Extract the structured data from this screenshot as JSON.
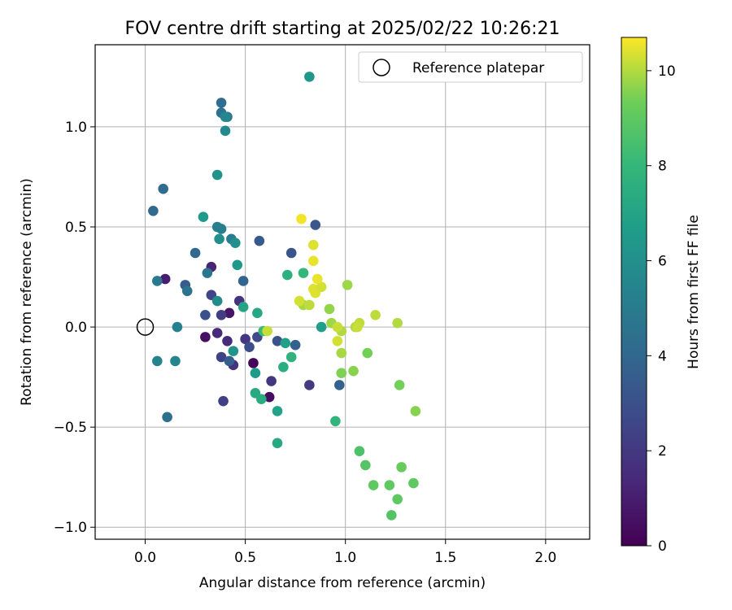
{
  "chart_data": {
    "type": "scatter",
    "title": "FOV centre drift starting at 2025/02/22 10:26:21",
    "xlabel": "Angular distance from reference (arcmin)",
    "ylabel": "Rotation from reference (arcmin)",
    "xlim": [
      -0.25,
      2.22
    ],
    "ylim": [
      -1.06,
      1.41
    ],
    "xticks": [
      "0.0",
      "0.5",
      "1.0",
      "1.5",
      "2.0"
    ],
    "yticks": [
      "−1.0",
      "−0.5",
      "0.0",
      "0.5",
      "1.0"
    ],
    "grid": true,
    "legend": {
      "position": "top-right",
      "entries": [
        "Reference platepar"
      ]
    },
    "reference": {
      "x": 0.0,
      "y": 0.0
    },
    "colorbar": {
      "label": "Hours from first FF file",
      "range": [
        0,
        10.7
      ],
      "ticks": [
        "0",
        "2",
        "4",
        "6",
        "8",
        "10"
      ],
      "colormap": "viridis"
    },
    "points": [
      {
        "x": 0.54,
        "y": -0.18,
        "h": 0.2
      },
      {
        "x": 0.62,
        "y": -0.35,
        "h": 0.4
      },
      {
        "x": 0.3,
        "y": -0.05,
        "h": 0.5
      },
      {
        "x": 0.42,
        "y": 0.07,
        "h": 0.7
      },
      {
        "x": 0.1,
        "y": 0.24,
        "h": 1.0
      },
      {
        "x": 0.33,
        "y": 0.3,
        "h": 1.2
      },
      {
        "x": 0.36,
        "y": -0.03,
        "h": 1.4
      },
      {
        "x": 0.41,
        "y": -0.07,
        "h": 1.5
      },
      {
        "x": 0.44,
        "y": -0.19,
        "h": 1.7
      },
      {
        "x": 0.47,
        "y": 0.13,
        "h": 1.8
      },
      {
        "x": 0.5,
        "y": -0.06,
        "h": 1.9
      },
      {
        "x": 0.63,
        "y": -0.27,
        "h": 2.0
      },
      {
        "x": 0.82,
        "y": -0.29,
        "h": 2.1
      },
      {
        "x": 0.38,
        "y": 0.06,
        "h": 2.2
      },
      {
        "x": 0.39,
        "y": -0.37,
        "h": 2.3
      },
      {
        "x": 0.38,
        "y": -0.15,
        "h": 2.4
      },
      {
        "x": 0.33,
        "y": 0.16,
        "h": 2.5
      },
      {
        "x": 0.56,
        "y": -0.05,
        "h": 2.7
      },
      {
        "x": 0.52,
        "y": -0.1,
        "h": 2.9
      },
      {
        "x": 0.3,
        "y": 0.06,
        "h": 3.0
      },
      {
        "x": 0.66,
        "y": -0.07,
        "h": 3.1
      },
      {
        "x": 0.73,
        "y": 0.37,
        "h": 3.2
      },
      {
        "x": 0.85,
        "y": 0.51,
        "h": 3.3
      },
      {
        "x": 0.57,
        "y": 0.43,
        "h": 3.4
      },
      {
        "x": 0.2,
        "y": 0.21,
        "h": 3.5
      },
      {
        "x": 0.42,
        "y": -0.17,
        "h": 3.6
      },
      {
        "x": 0.75,
        "y": -0.09,
        "h": 3.7
      },
      {
        "x": 0.97,
        "y": -0.29,
        "h": 3.8
      },
      {
        "x": 0.49,
        "y": 0.23,
        "h": 3.9
      },
      {
        "x": 0.25,
        "y": 0.37,
        "h": 4.0
      },
      {
        "x": 0.04,
        "y": 0.58,
        "h": 4.1
      },
      {
        "x": 0.09,
        "y": 0.69,
        "h": 4.2
      },
      {
        "x": 0.38,
        "y": 1.12,
        "h": 4.3
      },
      {
        "x": 0.38,
        "y": 1.07,
        "h": 4.4
      },
      {
        "x": 0.11,
        "y": -0.45,
        "h": 4.5
      },
      {
        "x": 0.21,
        "y": 0.18,
        "h": 4.6
      },
      {
        "x": 0.31,
        "y": 0.27,
        "h": 4.7
      },
      {
        "x": 0.41,
        "y": 1.05,
        "h": 4.8
      },
      {
        "x": 0.06,
        "y": 0.23,
        "h": 4.9
      },
      {
        "x": 0.43,
        "y": 0.44,
        "h": 5.0
      },
      {
        "x": 0.38,
        "y": 0.49,
        "h": 5.1
      },
      {
        "x": 0.36,
        "y": 0.5,
        "h": 5.2
      },
      {
        "x": 0.16,
        "y": 0.0,
        "h": 5.3
      },
      {
        "x": 0.06,
        "y": -0.17,
        "h": 5.4
      },
      {
        "x": 0.15,
        "y": -0.17,
        "h": 5.5
      },
      {
        "x": 0.4,
        "y": 1.05,
        "h": 5.6
      },
      {
        "x": 0.4,
        "y": 0.98,
        "h": 5.7
      },
      {
        "x": 0.36,
        "y": 0.13,
        "h": 5.8
      },
      {
        "x": 0.37,
        "y": 0.44,
        "h": 5.9
      },
      {
        "x": 0.45,
        "y": 0.42,
        "h": 6.0
      },
      {
        "x": 0.36,
        "y": 0.76,
        "h": 6.1
      },
      {
        "x": 0.44,
        "y": -0.12,
        "h": 6.2
      },
      {
        "x": 0.82,
        "y": 1.25,
        "h": 6.3
      },
      {
        "x": 0.46,
        "y": 0.31,
        "h": 6.4
      },
      {
        "x": 0.29,
        "y": 0.55,
        "h": 6.5
      },
      {
        "x": 0.55,
        "y": -0.23,
        "h": 6.6
      },
      {
        "x": 0.88,
        "y": 0.0,
        "h": 6.7
      },
      {
        "x": 0.7,
        "y": -0.08,
        "h": 6.8
      },
      {
        "x": 0.66,
        "y": -0.42,
        "h": 6.9
      },
      {
        "x": 0.49,
        "y": 0.1,
        "h": 7.0
      },
      {
        "x": 0.56,
        "y": 0.07,
        "h": 7.1
      },
      {
        "x": 0.66,
        "y": -0.58,
        "h": 7.2
      },
      {
        "x": 0.55,
        "y": -0.33,
        "h": 7.3
      },
      {
        "x": 0.58,
        "y": -0.36,
        "h": 7.4
      },
      {
        "x": 0.69,
        "y": -0.2,
        "h": 7.5
      },
      {
        "x": 0.71,
        "y": 0.26,
        "h": 7.6
      },
      {
        "x": 0.73,
        "y": -0.15,
        "h": 7.7
      },
      {
        "x": 0.95,
        "y": -0.47,
        "h": 7.8
      },
      {
        "x": 0.79,
        "y": 0.27,
        "h": 8.0
      },
      {
        "x": 0.59,
        "y": -0.02,
        "h": 8.2
      },
      {
        "x": 1.07,
        "y": -0.62,
        "h": 8.6
      },
      {
        "x": 1.1,
        "y": -0.69,
        "h": 8.8
      },
      {
        "x": 1.22,
        "y": -0.79,
        "h": 9.0
      },
      {
        "x": 1.14,
        "y": -0.79,
        "h": 9.0
      },
      {
        "x": 1.23,
        "y": -0.94,
        "h": 8.8
      },
      {
        "x": 1.28,
        "y": -0.7,
        "h": 9.2
      },
      {
        "x": 1.34,
        "y": -0.78,
        "h": 9.0
      },
      {
        "x": 1.26,
        "y": -0.86,
        "h": 9.0
      },
      {
        "x": 1.27,
        "y": -0.29,
        "h": 9.4
      },
      {
        "x": 1.35,
        "y": -0.42,
        "h": 9.6
      },
      {
        "x": 1.11,
        "y": -0.13,
        "h": 9.4
      },
      {
        "x": 0.98,
        "y": -0.23,
        "h": 9.5
      },
      {
        "x": 1.04,
        "y": -0.22,
        "h": 9.6
      },
      {
        "x": 0.92,
        "y": 0.09,
        "h": 9.7
      },
      {
        "x": 0.93,
        "y": 0.02,
        "h": 9.8
      },
      {
        "x": 0.79,
        "y": 0.11,
        "h": 9.9
      },
      {
        "x": 1.01,
        "y": 0.21,
        "h": 9.8
      },
      {
        "x": 0.98,
        "y": -0.13,
        "h": 9.9
      },
      {
        "x": 0.98,
        "y": -0.02,
        "h": 10.0
      },
      {
        "x": 1.05,
        "y": 0.0,
        "h": 10.0
      },
      {
        "x": 1.07,
        "y": 0.02,
        "h": 10.1
      },
      {
        "x": 1.06,
        "y": 0.0,
        "h": 10.2
      },
      {
        "x": 0.96,
        "y": -0.07,
        "h": 10.3
      },
      {
        "x": 0.96,
        "y": 0.0,
        "h": 10.2
      },
      {
        "x": 1.15,
        "y": 0.06,
        "h": 10.1
      },
      {
        "x": 1.26,
        "y": 0.02,
        "h": 10.0
      },
      {
        "x": 0.82,
        "y": 0.11,
        "h": 10.1
      },
      {
        "x": 0.77,
        "y": 0.13,
        "h": 10.3
      },
      {
        "x": 0.61,
        "y": -0.02,
        "h": 10.2
      },
      {
        "x": 0.84,
        "y": 0.19,
        "h": 10.4
      },
      {
        "x": 0.85,
        "y": 0.17,
        "h": 10.4
      },
      {
        "x": 0.88,
        "y": 0.2,
        "h": 10.3
      },
      {
        "x": 0.86,
        "y": 0.24,
        "h": 10.5
      },
      {
        "x": 0.84,
        "y": 0.33,
        "h": 10.5
      },
      {
        "x": 0.84,
        "y": 0.41,
        "h": 10.4
      },
      {
        "x": 0.78,
        "y": 0.54,
        "h": 10.6
      }
    ]
  }
}
